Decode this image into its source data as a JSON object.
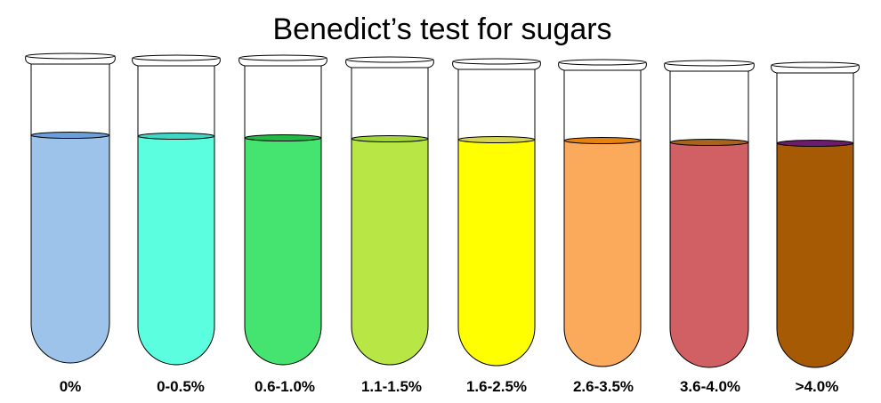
{
  "title": "Benedict’s test for sugars",
  "tubes": [
    {
      "label": "0%",
      "liquid_color": "#9EC3EA",
      "meniscus_color": "#6A9FD8"
    },
    {
      "label": "0-0.5%",
      "liquid_color": "#5BFFE0",
      "meniscus_color": "#3ED6C4"
    },
    {
      "label": "0.6-1.0%",
      "liquid_color": "#45E36F",
      "meniscus_color": "#22B845"
    },
    {
      "label": "1.1-1.5%",
      "liquid_color": "#B7E645",
      "meniscus_color": "#A2D53A"
    },
    {
      "label": "1.6-2.5%",
      "liquid_color": "#FFFF00",
      "meniscus_color": "#D7D454"
    },
    {
      "label": "2.6-3.5%",
      "liquid_color": "#FBA95A",
      "meniscus_color": "#E8820E"
    },
    {
      "label": "3.6-4.0%",
      "liquid_color": "#D06063",
      "meniscus_color": "#A8641E"
    },
    {
      "label": ">4.0%",
      "liquid_color": "#A65A03",
      "meniscus_color": "#6C1B6D"
    }
  ]
}
